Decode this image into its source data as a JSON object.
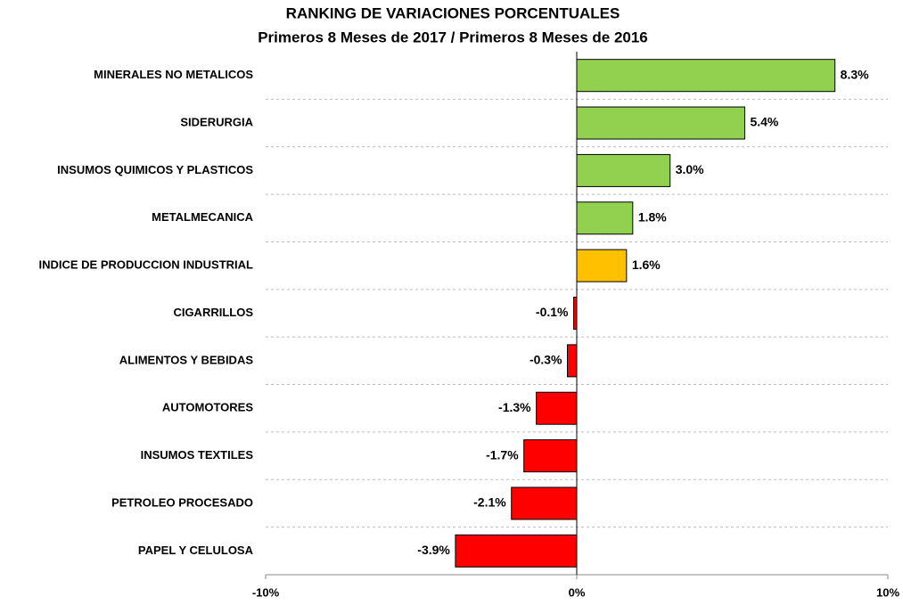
{
  "chart_data": {
    "type": "bar",
    "orientation": "horizontal",
    "title": "RANKING DE VARIACIONES PORCENTUALES",
    "subtitle": "Primeros 8 Meses de 2017 / Primeros 8 Meses de 2016",
    "categories": [
      "MINERALES NO METALICOS",
      "SIDERURGIA",
      "INSUMOS QUIMICOS Y PLASTICOS",
      "METALMECANICA",
      "INDICE DE PRODUCCION INDUSTRIAL",
      "CIGARRILLOS",
      "ALIMENTOS Y BEBIDAS",
      "AUTOMOTORES",
      "INSUMOS TEXTILES",
      "PETROLEO PROCESADO",
      "PAPEL Y CELULOSA"
    ],
    "values": [
      8.3,
      5.4,
      3.0,
      1.8,
      1.6,
      -0.1,
      -0.3,
      -1.3,
      -1.7,
      -2.1,
      -3.9
    ],
    "value_labels": [
      "8.3%",
      "5.4%",
      "3.0%",
      "1.8%",
      "1.6%",
      "-0.1%",
      "-0.3%",
      "-1.3%",
      "-1.7%",
      "-2.1%",
      "-3.9%"
    ],
    "colors": [
      "#92d050",
      "#92d050",
      "#92d050",
      "#92d050",
      "#ffc000",
      "#ff0000",
      "#ff0000",
      "#ff0000",
      "#ff0000",
      "#ff0000",
      "#ff0000"
    ],
    "xlim": [
      -10,
      10
    ],
    "xticks": [
      {
        "value": -10,
        "label": "-10%"
      },
      {
        "value": 0,
        "label": "0%"
      },
      {
        "value": 10,
        "label": "10%"
      }
    ]
  }
}
